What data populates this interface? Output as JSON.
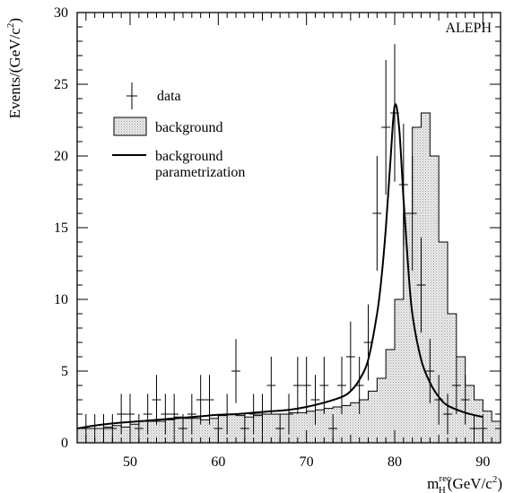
{
  "chart_data": {
    "type": "histogram",
    "experiment_label": "ALEPH",
    "xlabel": {
      "main": "m",
      "sup": "rec",
      "sub": "H",
      "unit_prefix": "(GeV/c",
      "unit_exp": "2",
      "unit_suffix": ")"
    },
    "ylabel": {
      "main": "Events/(GeV/c",
      "exp": "2",
      "suffix": ")"
    },
    "xlim": [
      44,
      92
    ],
    "ylim": [
      0,
      30
    ],
    "x_ticks": [
      50,
      60,
      70,
      80,
      90
    ],
    "y_ticks": [
      0,
      5,
      10,
      15,
      20,
      25,
      30
    ],
    "legend": {
      "data_label": "data",
      "background_label": "background",
      "param_label_line1": "background",
      "param_label_line2": "parametrization"
    },
    "background": {
      "bin_edges_start": 44,
      "bin_width": 1,
      "values": [
        1.0,
        1.0,
        1.0,
        1.1,
        1.2,
        1.1,
        1.3,
        1.5,
        1.5,
        1.5,
        1.6,
        1.8,
        1.7,
        1.7,
        1.6,
        1.7,
        1.9,
        2.0,
        1.9,
        1.8,
        1.9,
        2.0,
        2.0,
        2.0,
        2.1,
        2.1,
        2.2,
        2.3,
        2.4,
        2.5,
        2.6,
        2.8,
        3.0,
        3.6,
        4.5,
        6.5,
        10.0,
        16.0,
        22.0,
        23.0,
        20.0,
        14.0,
        9.0,
        6.0,
        4.0,
        3.0,
        2.2,
        1.5
      ]
    },
    "data": {
      "x": [
        45,
        46,
        47,
        48,
        49,
        50,
        51,
        52,
        53,
        54,
        55,
        56,
        57,
        58,
        59,
        60,
        61,
        62,
        63,
        64,
        65,
        66,
        67,
        68,
        69,
        70,
        71,
        72,
        73,
        74,
        75,
        76,
        77,
        78,
        79,
        80,
        81,
        82,
        83,
        84,
        85,
        86,
        87,
        88,
        89,
        90
      ],
      "y": [
        1,
        1,
        1,
        1,
        2,
        2,
        1,
        2,
        3,
        2,
        2,
        1,
        2,
        3,
        3,
        1,
        2,
        5,
        1,
        2,
        2,
        4,
        1,
        2,
        4,
        4,
        3,
        4,
        1,
        4,
        6,
        4,
        7,
        16,
        22,
        23,
        18,
        16,
        11,
        5,
        3,
        2,
        4,
        3,
        1,
        1
      ]
    },
    "parametrization": {
      "x": [
        44,
        46,
        48,
        50,
        52,
        54,
        56,
        58,
        60,
        62,
        64,
        66,
        68,
        70,
        72,
        74,
        75,
        76,
        77,
        78,
        78.5,
        79,
        79.5,
        80,
        80.5,
        81,
        81.5,
        82,
        83,
        84,
        85,
        86,
        88,
        90
      ],
      "y": [
        1.0,
        1.2,
        1.35,
        1.45,
        1.55,
        1.65,
        1.75,
        1.85,
        1.95,
        2.0,
        2.1,
        2.2,
        2.3,
        2.5,
        2.8,
        3.2,
        3.6,
        4.4,
        5.8,
        9.0,
        11.5,
        15.0,
        19.5,
        23.5,
        22.0,
        17.0,
        12.5,
        9.0,
        5.8,
        4.2,
        3.2,
        2.6,
        2.1,
        1.8
      ]
    }
  }
}
